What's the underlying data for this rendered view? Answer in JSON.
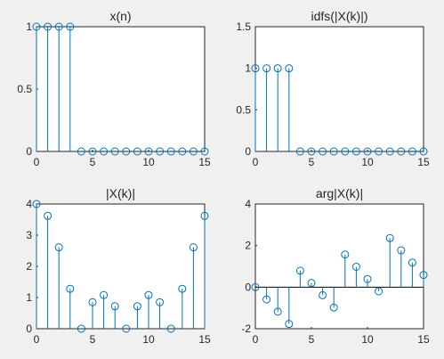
{
  "chart_data": [
    {
      "type": "stem",
      "title": "x(n)",
      "x": [
        0,
        1,
        2,
        3,
        4,
        5,
        6,
        7,
        8,
        9,
        10,
        11,
        12,
        13,
        14,
        15
      ],
      "y": [
        1,
        1,
        1,
        1,
        0,
        0,
        0,
        0,
        0,
        0,
        0,
        0,
        0,
        0,
        0,
        0
      ],
      "xlim": [
        0,
        15
      ],
      "ylim": [
        0,
        1
      ],
      "xticks": [
        0,
        5,
        10,
        15
      ],
      "yticks": [
        0,
        0.5,
        1
      ],
      "xtick_labels": [
        "0",
        "5",
        "10",
        "15"
      ],
      "ytick_labels": [
        "0",
        "0.5",
        "1"
      ],
      "baseline": false,
      "grid": false
    },
    {
      "type": "stem",
      "title": "idfs(|X(k)|)",
      "x": [
        0,
        1,
        2,
        3,
        4,
        5,
        6,
        7,
        8,
        9,
        10,
        11,
        12,
        13,
        14,
        15
      ],
      "y": [
        1,
        1,
        1,
        1,
        0,
        0,
        0,
        0,
        0,
        0,
        0,
        0,
        0,
        0,
        0,
        0
      ],
      "xlim": [
        0,
        15
      ],
      "ylim": [
        0,
        1.5
      ],
      "xticks": [
        0,
        5,
        10,
        15
      ],
      "yticks": [
        0,
        0.5,
        1,
        1.5
      ],
      "xtick_labels": [
        "0",
        "5",
        "10",
        "15"
      ],
      "ytick_labels": [
        "0",
        "0.5",
        "1",
        "1.5"
      ],
      "baseline": false,
      "grid": false
    },
    {
      "type": "stem",
      "title": "|X(k)|",
      "x": [
        0,
        1,
        2,
        3,
        4,
        5,
        6,
        7,
        8,
        9,
        10,
        11,
        12,
        13,
        14,
        15
      ],
      "y": [
        4,
        3.62,
        2.61,
        1.28,
        0,
        0.85,
        1.08,
        0.72,
        0,
        0.72,
        1.08,
        0.85,
        0,
        1.28,
        2.61,
        3.62
      ],
      "xlim": [
        0,
        15
      ],
      "ylim": [
        0,
        4
      ],
      "xticks": [
        0,
        5,
        10,
        15
      ],
      "yticks": [
        0,
        1,
        2,
        3,
        4
      ],
      "xtick_labels": [
        "0",
        "5",
        "10",
        "15"
      ],
      "ytick_labels": [
        "0",
        "1",
        "2",
        "3",
        "4"
      ],
      "baseline": false,
      "grid": false
    },
    {
      "type": "stem",
      "title": "arg|X(k)|",
      "x": [
        0,
        1,
        2,
        3,
        4,
        5,
        6,
        7,
        8,
        9,
        10,
        11,
        12,
        13,
        14,
        15
      ],
      "y": [
        0,
        -0.59,
        -1.18,
        -1.77,
        0.79,
        0.2,
        -0.39,
        -0.98,
        1.57,
        0.98,
        0.39,
        -0.2,
        2.36,
        1.77,
        1.18,
        0.59
      ],
      "xlim": [
        0,
        15
      ],
      "ylim": [
        -2,
        4
      ],
      "xticks": [
        0,
        5,
        10,
        15
      ],
      "yticks": [
        -2,
        0,
        2,
        4
      ],
      "xtick_labels": [
        "0",
        "5",
        "10",
        "15"
      ],
      "ytick_labels": [
        "-2",
        "0",
        "2",
        "4"
      ],
      "baseline": true,
      "grid": false
    }
  ],
  "colors": {
    "stem": "#0072bd",
    "axes": "#262626",
    "axes_background": "#ffffff",
    "figure_background": "#f0f0f0"
  }
}
